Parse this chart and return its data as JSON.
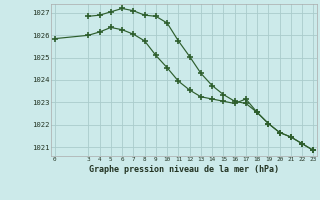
{
  "background_color": "#cceaea",
  "grid_color": "#aacccc",
  "line_color": "#2d5e2d",
  "marker_color": "#2d5e2d",
  "xlabel": "Graphe pression niveau de la mer (hPa)",
  "ylim": [
    1020.6,
    1027.4
  ],
  "xlim": [
    -0.3,
    23.3
  ],
  "yticks": [
    1021,
    1022,
    1023,
    1024,
    1025,
    1026,
    1027
  ],
  "xticks": [
    0,
    3,
    4,
    5,
    6,
    7,
    8,
    9,
    10,
    11,
    12,
    13,
    14,
    15,
    16,
    17,
    18,
    19,
    20,
    21,
    22,
    23
  ],
  "series1_x": [
    0,
    3,
    4,
    5,
    6,
    7,
    8,
    9,
    10,
    11,
    12,
    13,
    14,
    15,
    16,
    17,
    18,
    19,
    20,
    21,
    22,
    23
  ],
  "series1_y": [
    1025.85,
    1026.0,
    1026.15,
    1026.35,
    1026.25,
    1026.05,
    1025.75,
    1025.1,
    1024.55,
    1023.95,
    1023.55,
    1023.25,
    1023.15,
    1023.05,
    1022.95,
    1023.15,
    1022.55,
    1022.05,
    1021.65,
    1021.45,
    1021.15,
    1020.85
  ],
  "series2_x": [
    3,
    4,
    5,
    6,
    7,
    8,
    9,
    10,
    11,
    12,
    13,
    14,
    15,
    16,
    17,
    18,
    19,
    20,
    21,
    22,
    23
  ],
  "series2_y": [
    1026.85,
    1026.9,
    1027.05,
    1027.2,
    1027.1,
    1026.9,
    1026.85,
    1026.55,
    1025.75,
    1025.05,
    1024.3,
    1023.75,
    1023.35,
    1023.05,
    1022.95,
    1022.55,
    1022.05,
    1021.65,
    1021.45,
    1021.15,
    1020.85
  ]
}
